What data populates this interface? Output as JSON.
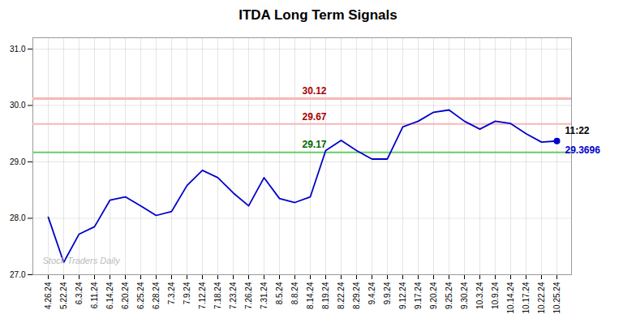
{
  "chart_data": {
    "type": "line",
    "title": "ITDA Long Term Signals",
    "categories": [
      "4.26.24",
      "5.22.24",
      "6.3.24",
      "6.11.24",
      "6.14.24",
      "6.20.24",
      "6.25.24",
      "6.28.24",
      "7.3.24",
      "7.9.24",
      "7.12.24",
      "7.18.24",
      "7.23.24",
      "7.26.24",
      "7.31.24",
      "8.5.24",
      "8.8.24",
      "8.14.24",
      "8.19.24",
      "8.22.24",
      "8.29.24",
      "9.4.24",
      "9.9.24",
      "9.12.24",
      "9.17.24",
      "9.20.24",
      "9.25.24",
      "9.30.24",
      "10.3.24",
      "10.9.24",
      "10.14.24",
      "10.17.24",
      "10.22.24",
      "10.25.24"
    ],
    "series": [
      {
        "color": "#0000cc",
        "values": [
          28.02,
          27.22,
          27.72,
          27.85,
          28.32,
          28.38,
          28.22,
          28.05,
          28.12,
          28.58,
          28.85,
          28.72,
          28.45,
          28.22,
          28.72,
          28.35,
          28.28,
          28.38,
          29.2,
          29.38,
          29.2,
          29.05,
          29.05,
          29.62,
          29.72,
          29.88,
          29.92,
          29.72,
          29.58,
          29.72,
          29.68,
          29.5,
          29.35,
          29.37
        ]
      }
    ],
    "hlines": [
      {
        "value": 30.12,
        "label": "30.12",
        "color": "#f5b8b8",
        "label_color": "#aa0000"
      },
      {
        "value": 29.67,
        "label": "29.67",
        "color": "#f5b8b8",
        "label_color": "#aa0000"
      },
      {
        "value": 29.17,
        "label": "29.17",
        "color": "#66cc66",
        "label_color": "#006600"
      }
    ],
    "annotations": [
      {
        "text": "11:22",
        "color": "#000000",
        "x": "10.25.24",
        "y": 29.37
      },
      {
        "text": "29.3696",
        "color": "#0000cc",
        "x": "10.25.24",
        "y": 29.37
      },
      {
        "text": "Stock Traders Daily",
        "color": "#bbbbbb"
      }
    ],
    "ylim": [
      27.0,
      31.2
    ],
    "yticks": [
      27,
      28,
      29,
      30,
      31
    ],
    "grid": true
  }
}
